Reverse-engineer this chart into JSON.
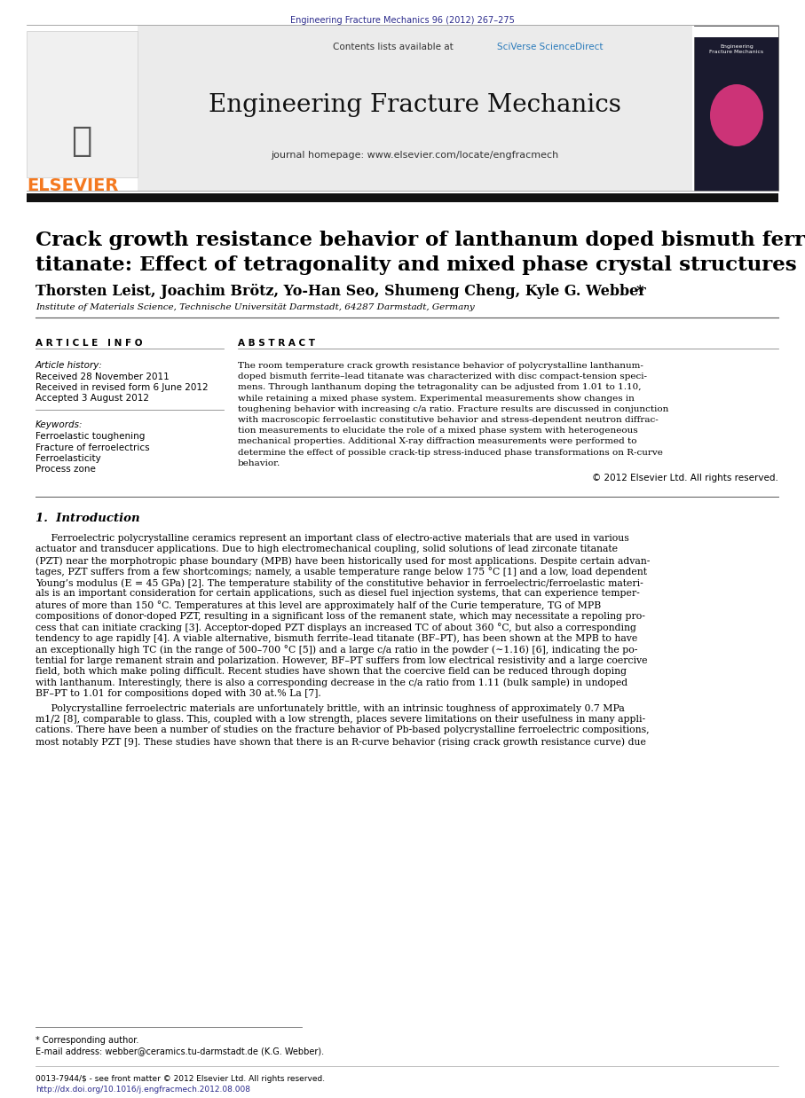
{
  "journal_ref": "Engineering Fracture Mechanics 96 (2012) 267–275",
  "journal_ref_color": "#2B2B8C",
  "contents_line": "Contents lists available at ",
  "sciverse_text": "SciVerse ScienceDirect",
  "sciverse_color": "#2B7BBB",
  "journal_title": "Engineering Fracture Mechanics",
  "journal_homepage": "journal homepage: www.elsevier.com/locate/engfracmech",
  "elsevier_color": "#F47920",
  "paper_title_line1": "Crack growth resistance behavior of lanthanum doped bismuth ferrite–lead",
  "paper_title_line2": "titanate: Effect of tetragonality and mixed phase crystal structures",
  "authors_main": "Thorsten Leist, Joachim Brötz, Yo-Han Seo, Shumeng Cheng, Kyle G. Webber",
  "authors_star": "*",
  "affiliation": "Institute of Materials Science, Technische Universität Darmstadt, 64287 Darmstadt, Germany",
  "article_info_header": "A R T I C L E   I N F O",
  "article_history_label": "Article history:",
  "received1": "Received 28 November 2011",
  "received2": "Received in revised form 6 June 2012",
  "accepted": "Accepted 3 August 2012",
  "keywords_label": "Keywords:",
  "keywords": [
    "Ferroelastic toughening",
    "Fracture of ferroelectrics",
    "Ferroelasticity",
    "Process zone"
  ],
  "abstract_header": "A B S T R A C T",
  "abstract_lines": [
    "The room temperature crack growth resistance behavior of polycrystalline lanthanum-",
    "doped bismuth ferrite–lead titanate was characterized with disc compact-tension speci-",
    "mens. Through lanthanum doping the tetragonality can be adjusted from 1.01 to 1.10,",
    "while retaining a mixed phase system. Experimental measurements show changes in",
    "toughening behavior with increasing c/a ratio. Fracture results are discussed in conjunction",
    "with macroscopic ferroelastic constitutive behavior and stress-dependent neutron diffrac-",
    "tion measurements to elucidate the role of a mixed phase system with heterogeneous",
    "mechanical properties. Additional X-ray diffraction measurements were performed to",
    "determine the effect of possible crack-tip stress-induced phase transformations on R-curve",
    "behavior."
  ],
  "copyright": "© 2012 Elsevier Ltd. All rights reserved.",
  "section_header": "1.  Introduction",
  "intro1_lines": [
    "     Ferroelectric polycrystalline ceramics represent an important class of electro-active materials that are used in various",
    "actuator and transducer applications. Due to high electromechanical coupling, solid solutions of lead zirconate titanate",
    "(PZT) near the morphotropic phase boundary (MPB) have been historically used for most applications. Despite certain advan-",
    "tages, PZT suffers from a few shortcomings; namely, a usable temperature range below 175 °C [1] and a low, load dependent",
    "Young’s modulus (E = 45 GPa) [2]. The temperature stability of the constitutive behavior in ferroelectric/ferroelastic materi-",
    "als is an important consideration for certain applications, such as diesel fuel injection systems, that can experience temper-",
    "atures of more than 150 °C. Temperatures at this level are approximately half of the Curie temperature, TG of MPB",
    "compositions of donor-doped PZT, resulting in a significant loss of the remanent state, which may necessitate a repoling pro-",
    "cess that can initiate cracking [3]. Acceptor-doped PZT displays an increased TC of about 360 °C, but also a corresponding",
    "tendency to age rapidly [4]. A viable alternative, bismuth ferrite–lead titanate (BF–PT), has been shown at the MPB to have",
    "an exceptionally high TC (in the range of 500–700 °C [5]) and a large c/a ratio in the powder (∼1.16) [6], indicating the po-",
    "tential for large remanent strain and polarization. However, BF–PT suffers from low electrical resistivity and a large coercive",
    "field, both which make poling difficult. Recent studies have shown that the coercive field can be reduced through doping",
    "with lanthanum. Interestingly, there is also a corresponding decrease in the c/a ratio from 1.11 (bulk sample) in undoped",
    "BF–PT to 1.01 for compositions doped with 30 at.% La [7]."
  ],
  "intro2_lines": [
    "     Polycrystalline ferroelectric materials are unfortunately brittle, with an intrinsic toughness of approximately 0.7 MPa",
    "m1/2 [8], comparable to glass. This, coupled with a low strength, places severe limitations on their usefulness in many appli-",
    "cations. There have been a number of studies on the fracture behavior of Pb-based polycrystalline ferroelectric compositions,",
    "most notably PZT [9]. These studies have shown that there is an R-curve behavior (rising crack growth resistance curve) due"
  ],
  "footnote_star": "* Corresponding author.",
  "footnote_email": "E-mail address: webber@ceramics.tu-darmstadt.de (K.G. Webber).",
  "footer_issn": "0013-7944/$ - see front matter © 2012 Elsevier Ltd. All rights reserved.",
  "footer_doi": "http://dx.doi.org/10.1016/j.engfracmech.2012.08.008",
  "bg_color": "#ffffff"
}
